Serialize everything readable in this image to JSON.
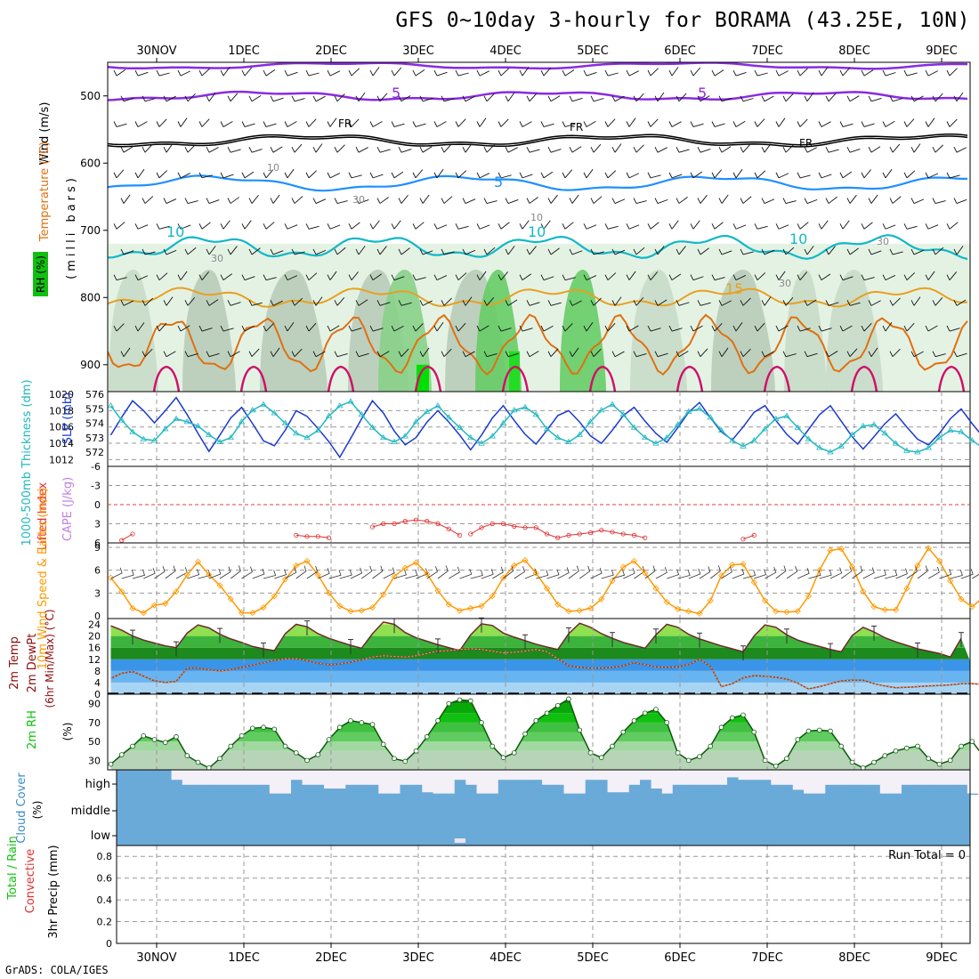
{
  "title": "GFS 0~10day 3-hourly for BORAMA (43.25E, 10N)",
  "footer": "GrADS: COLA/IGES",
  "colors": {
    "purple": "#8a2be2",
    "black": "#000000",
    "blue_line": "#1e90ff",
    "cyan": "#10b8c8",
    "orange": "#e8a020",
    "dark_orange": "#e07010",
    "magenta": "#d0106a",
    "slp": "#1a3ad0",
    "thickness": "#20b8c0",
    "lifted": "#e03030",
    "wind": "#ff9900",
    "cloud": "#6aaad8",
    "rh_green": "#10c010"
  },
  "chart_data": [
    {
      "type": "heatmap",
      "panel": "pressure-time cross section",
      "ylabels": [
        "Wind (m/s)",
        "Temperature (°C)",
        "RH (%)",
        "(milli bars)"
      ],
      "ylim": [
        450,
        940
      ],
      "y_ticks": [
        500,
        600,
        700,
        800,
        900
      ],
      "x_ticks": [
        "30NOV",
        "1DEC",
        "2DEC",
        "3DEC",
        "4DEC",
        "5DEC",
        "6DEC",
        "7DEC",
        "8DEC",
        "9DEC"
      ],
      "contour_labels": [
        {
          "text": "5",
          "color": "purple"
        },
        {
          "text": "5",
          "color": "purple"
        },
        {
          "text": "FR",
          "color": "black"
        },
        {
          "text": "FR",
          "color": "black"
        },
        {
          "text": "FR",
          "color": "black"
        },
        {
          "text": "5",
          "color": "blue_line"
        },
        {
          "text": "10",
          "color": "cyan"
        },
        {
          "text": "10",
          "color": "cyan"
        },
        {
          "text": "10",
          "color": "cyan"
        },
        {
          "text": "15",
          "color": "orange"
        },
        {
          "text": "10",
          "color": "gray"
        },
        {
          "text": "30",
          "color": "gray"
        },
        {
          "text": "30",
          "color": "gray"
        },
        {
          "text": "10",
          "color": "gray"
        },
        {
          "text": "30",
          "color": "gray"
        },
        {
          "text": "30",
          "color": "gray"
        }
      ]
    },
    {
      "type": "line",
      "panel": "thickness and SLP",
      "ylabels": [
        "1000-500mb Thickness (dm)",
        "SLP (mb)"
      ],
      "left_ticks": [
        "576",
        "575",
        "574",
        "573",
        "572"
      ],
      "right_ticks": [
        "1020",
        "1018",
        "1016",
        "1014",
        "1012"
      ],
      "series": [
        {
          "name": "SLP (mb)",
          "color": "slp",
          "values": [
            1015.0,
            1017.2,
            1019.2,
            1018.0,
            1016.5,
            1018.0,
            1019.6,
            1017.5,
            1015.2,
            1013.0,
            1015.0,
            1017.1,
            1018.4,
            1016.4,
            1014.3,
            1013.7,
            1015.6,
            1018.0,
            1017.3,
            1015.8,
            1014.2,
            1012.3,
            1014.6,
            1017.0,
            1019.2,
            1017.7,
            1015.5,
            1013.8,
            1014.7,
            1016.6,
            1018.0,
            1016.6,
            1015.0,
            1013.2,
            1015.0,
            1017.1,
            1018.6,
            1016.8,
            1015.1,
            1013.9,
            1015.6,
            1017.4,
            1018.0,
            1016.6,
            1014.9,
            1014.0,
            1015.6,
            1017.4,
            1018.4,
            1016.7,
            1015.2,
            1014.1,
            1015.9,
            1017.8,
            1019.0,
            1017.1,
            1015.4,
            1014.4,
            1016.0,
            1017.8,
            1018.6,
            1016.8,
            1015.1,
            1013.9,
            1015.7,
            1017.5,
            1018.6,
            1016.7,
            1014.8,
            1013.3,
            1014.8,
            1016.4,
            1017.6,
            1016.0,
            1014.5,
            1013.8,
            1015.2,
            1017.0,
            1018.2,
            1016.4,
            1014.8
          ]
        },
        {
          "name": "1000-500mb Thickness (dm)",
          "color": "thickness",
          "values": [
            575.2,
            574.2,
            573.4,
            572.9,
            572.8,
            573.6,
            574.3,
            574.1,
            573.8,
            573.2,
            572.7,
            573.0,
            574.1,
            574.9,
            575.3,
            574.7,
            574.0,
            573.3,
            573.0,
            573.5,
            574.5,
            575.2,
            575.5,
            574.6,
            573.7,
            573.0,
            572.7,
            573.1,
            574.1,
            574.8,
            575.2,
            574.4,
            573.7,
            573.0,
            572.6,
            573.1,
            574.0,
            574.9,
            575.1,
            574.6,
            573.6,
            573.0,
            572.7,
            573.2,
            574.1,
            574.9,
            575.3,
            574.6,
            573.7,
            573.0,
            572.6,
            573.0,
            573.9,
            574.8,
            575.0,
            574.4,
            573.5,
            572.8,
            572.4,
            572.8,
            573.6,
            574.3,
            574.5,
            573.7,
            572.9,
            572.3,
            572.0,
            572.4,
            573.2,
            573.8,
            573.9,
            573.3,
            572.6,
            572.1,
            572.0,
            572.3,
            573.0,
            573.5,
            573.4,
            572.8,
            572.3
          ]
        }
      ]
    },
    {
      "type": "line",
      "panel": "Lifted Index and CAPE",
      "ylabels": [
        "Lifted Index",
        "CAPE (J/kg)"
      ],
      "y_ticks": [
        "-6",
        "-3",
        "0",
        "3",
        "6"
      ],
      "ylim": [
        -6,
        6
      ],
      "series": [
        {
          "name": "Lifted Index",
          "color": "lifted",
          "segments": [
            {
              "start": 1,
              "values": [
                5.6,
                4.6
              ]
            },
            {
              "start": 17,
              "values": [
                4.8,
                5.0,
                5.0,
                5.2
              ]
            },
            {
              "start": 24,
              "values": [
                3.5,
                3.0,
                3.0,
                2.6,
                2.4,
                2.6,
                3.0,
                3.8,
                4.8
              ]
            },
            {
              "start": 33,
              "values": [
                4.6,
                3.6,
                3.0,
                3.0,
                3.4,
                3.6,
                3.6,
                4.6,
                5.2,
                4.8,
                4.6,
                4.4,
                4.0,
                4.3,
                4.6,
                4.8,
                5.2
              ]
            },
            {
              "start": 58,
              "values": [
                5.4,
                4.8
              ]
            }
          ]
        }
      ]
    },
    {
      "type": "line",
      "panel": "10m wind",
      "ylabels": [
        "10m Wind Speed & Barbs (m/s)"
      ],
      "y_ticks": [
        "0",
        "3",
        "6",
        "9"
      ],
      "ylim": [
        0,
        9
      ],
      "series": [
        {
          "name": "10m Wind Speed",
          "color": "wind",
          "values": [
            5.0,
            3.2,
            1.0,
            0.4,
            1.4,
            1.6,
            3.2,
            5.4,
            7.1,
            5.4,
            4.0,
            2.2,
            0.4,
            0.4,
            1.1,
            2.6,
            4.8,
            6.6,
            7.2,
            5.4,
            3.0,
            1.3,
            0.6,
            0.7,
            1.1,
            2.8,
            5.2,
            6.3,
            7.0,
            5.5,
            3.3,
            1.5,
            0.7,
            1.0,
            1.3,
            2.6,
            5.0,
            6.6,
            7.3,
            5.6,
            3.6,
            1.5,
            0.6,
            0.7,
            1.0,
            2.2,
            4.6,
            6.4,
            7.2,
            5.6,
            3.6,
            1.8,
            0.9,
            0.6,
            0.3,
            2.0,
            5.3,
            6.7,
            6.8,
            4.4,
            2.0,
            0.6,
            0.5,
            0.6,
            2.6,
            6.0,
            8.6,
            8.8,
            6.5,
            3.2,
            1.2,
            0.8,
            0.8,
            3.6,
            6.6,
            8.9,
            7.2,
            4.6,
            2.2,
            1.2,
            2.4
          ]
        }
      ]
    },
    {
      "type": "area",
      "panel": "2m temperature",
      "ylabels": [
        "2m Temp",
        "2m DewPt",
        "(6hr Min/Max) (°C)"
      ],
      "y_ticks": [
        "0",
        "4",
        "8",
        "12",
        "16",
        "20",
        "24"
      ],
      "ylim": [
        0,
        26
      ],
      "series": [
        {
          "name": "2m Temp",
          "color": "#6b2a2a",
          "values": [
            23.5,
            22.0,
            20.0,
            18.6,
            17.6,
            16.6,
            16.0,
            21.0,
            23.8,
            22.8,
            20.6,
            19.0,
            17.8,
            16.4,
            15.6,
            15.0,
            20.8,
            24.0,
            23.2,
            20.8,
            19.2,
            18.0,
            16.8,
            15.8,
            20.8,
            24.8,
            24.0,
            21.2,
            19.4,
            18.2,
            17.0,
            16.0,
            15.0,
            20.4,
            24.2,
            23.6,
            21.0,
            19.6,
            18.4,
            17.2,
            16.2,
            15.4,
            20.8,
            24.4,
            23.0,
            20.8,
            19.2,
            17.8,
            16.8,
            15.8,
            20.4,
            24.0,
            23.0,
            20.6,
            19.0,
            17.8,
            16.6,
            15.6,
            14.6,
            20.0,
            23.8,
            23.0,
            20.4,
            18.6,
            17.4,
            16.4,
            15.4,
            14.6,
            20.2,
            23.0,
            21.4,
            19.4,
            18.0,
            16.8,
            15.6,
            14.8,
            14.0,
            12.8,
            19.2
          ]
        },
        {
          "name": "2m DewPt",
          "color": "#8b4513",
          "values": [
            5.4,
            7.2,
            7.8,
            6.2,
            4.6,
            4.0,
            4.4,
            9.0,
            9.0,
            8.4,
            8.0,
            8.4,
            9.2,
            10.0,
            10.8,
            11.6,
            12.2,
            12.2,
            11.6,
            10.6,
            10.2,
            10.4,
            11.0,
            11.8,
            12.8,
            13.2,
            13.0,
            12.8,
            13.2,
            14.0,
            14.8,
            15.0,
            15.4,
            15.6,
            15.4,
            14.8,
            14.2,
            14.4,
            14.8,
            15.4,
            14.6,
            12.2,
            9.8,
            9.2,
            9.0,
            9.0,
            9.2,
            9.8,
            10.8,
            10.2,
            9.4,
            9.2,
            9.4,
            10.2,
            12.0,
            9.6,
            2.6,
            3.6,
            5.6,
            6.4,
            6.2,
            5.8,
            5.2,
            3.8,
            1.8,
            2.6,
            3.6,
            4.6,
            4.8,
            4.8,
            3.6,
            2.8,
            2.2,
            2.4,
            2.6,
            2.8,
            3.0,
            3.2,
            3.6,
            3.6,
            3.4
          ]
        }
      ]
    },
    {
      "type": "area",
      "panel": "2m RH",
      "ylabels": [
        "2m RH",
        "(%)"
      ],
      "y_ticks": [
        "30",
        "50",
        "70",
        "90"
      ],
      "ylim": [
        20,
        100
      ],
      "series": [
        {
          "name": "2m RH",
          "color": "rh_green",
          "values": [
            26,
            36,
            45,
            56,
            52,
            49,
            55,
            35,
            28,
            22,
            32,
            45,
            56,
            64,
            65,
            63,
            45,
            38,
            30,
            36,
            52,
            65,
            72,
            70,
            68,
            47,
            32,
            29,
            40,
            55,
            72,
            90,
            94,
            93,
            70,
            45,
            33,
            38,
            58,
            72,
            80,
            88,
            95,
            62,
            38,
            33,
            45,
            60,
            72,
            80,
            84,
            70,
            38,
            30,
            34,
            45,
            65,
            75,
            78,
            60,
            30,
            24,
            32,
            52,
            61,
            62,
            61,
            45,
            28,
            22,
            28,
            35,
            40,
            43,
            45,
            32,
            26,
            30,
            45,
            50,
            35
          ]
        }
      ]
    },
    {
      "type": "bar",
      "panel": "cloud cover",
      "ylabels": [
        "Cloud Cover",
        "(%)"
      ],
      "levels": [
        "high",
        "middle",
        "low"
      ],
      "ylim": [
        0,
        100
      ],
      "series": [
        {
          "name": "high",
          "color": "cloud",
          "values": [
            100,
            100,
            100,
            100,
            100,
            60,
            40,
            40,
            40,
            40,
            40,
            40,
            40,
            40,
            5,
            5,
            60,
            40,
            40,
            25,
            25,
            40,
            40,
            40,
            5,
            5,
            40,
            40,
            10,
            5,
            5,
            60,
            40,
            5,
            5,
            60,
            60,
            60,
            60,
            40,
            40,
            5,
            5,
            60,
            60,
            10,
            10,
            40,
            60,
            25,
            5,
            40,
            40,
            40,
            40,
            40,
            70,
            60,
            60,
            60,
            40,
            40,
            20,
            5,
            5,
            40,
            40,
            40,
            40,
            40,
            5,
            5,
            40,
            40,
            40,
            40,
            40,
            40,
            5,
            5,
            60
          ]
        },
        {
          "name": "low",
          "color": "cloud",
          "values": [
            100,
            100,
            100,
            100,
            100,
            100,
            100,
            100,
            100,
            100,
            100,
            100,
            100,
            100,
            100,
            100,
            100,
            100,
            100,
            100,
            100,
            100,
            100,
            100,
            100,
            100,
            100,
            100,
            100,
            100,
            100,
            60,
            100,
            100,
            100,
            100,
            100,
            100,
            100,
            100,
            100,
            100,
            100,
            100,
            100,
            100,
            100,
            100,
            100,
            100,
            100,
            100,
            100,
            100,
            100,
            100,
            100,
            100,
            100,
            100,
            100,
            100,
            100,
            100,
            100,
            100,
            100,
            100,
            100,
            100,
            100,
            100,
            100,
            100,
            100,
            100,
            100,
            100,
            100,
            100,
            100
          ]
        }
      ]
    },
    {
      "type": "bar",
      "panel": "3hr precipitation",
      "ylabels": [
        "Total / Rain",
        "Convective",
        "3hr Precip (mm)"
      ],
      "annotation": "Run Total = 0",
      "y_ticks": [
        "0",
        "0.2",
        "0.4",
        "0.6",
        "0.8"
      ],
      "ylim": [
        0,
        0.9
      ],
      "x_ticks": [
        "30NOV",
        "1DEC",
        "2DEC",
        "3DEC",
        "4DEC",
        "5DEC",
        "6DEC",
        "7DEC",
        "8DEC",
        "9DEC"
      ],
      "values": []
    }
  ]
}
